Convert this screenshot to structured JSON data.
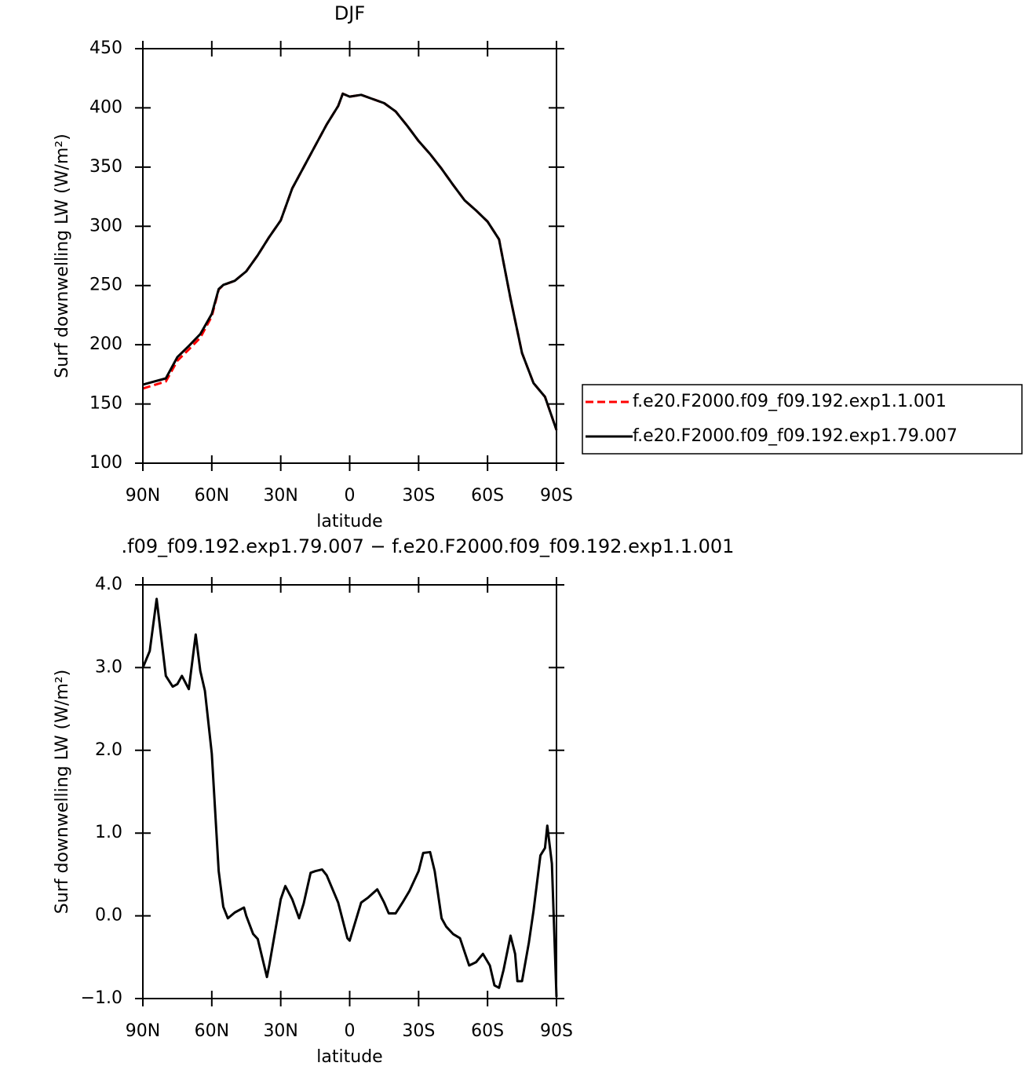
{
  "chart_data": [
    {
      "type": "line",
      "title": "DJF",
      "x_label": "latitude",
      "y_label": "Surf downwelling LW (W/m²)",
      "x": [
        90,
        85,
        80,
        75,
        70,
        65,
        60,
        57,
        55,
        50,
        45,
        40,
        35,
        30,
        25,
        20,
        15,
        10,
        5,
        3,
        0,
        -5,
        -10,
        -15,
        -20,
        -25,
        -30,
        -35,
        -40,
        -45,
        -50,
        -55,
        -60,
        -65,
        -70,
        -75,
        -80,
        -85,
        -90
      ],
      "xlim": [
        90,
        -90
      ],
      "xticks": [
        {
          "value": 90,
          "label": "90N"
        },
        {
          "value": 60,
          "label": "60N"
        },
        {
          "value": 30,
          "label": "30N"
        },
        0,
        {
          "value": -30,
          "label": "30S"
        },
        {
          "value": -60,
          "label": "60S"
        },
        {
          "value": -90,
          "label": "90S"
        }
      ],
      "ylim": [
        100,
        450
      ],
      "yticks": [
        100,
        150,
        200,
        250,
        300,
        350,
        400,
        450
      ],
      "legend": "outside-right",
      "series": [
        {
          "name": "f.e20.F2000.f09_f09.192.exp1.1.001",
          "color": "#ff0000",
          "dash": "dashed",
          "values": [
            163,
            166,
            169,
            186.5,
            196,
            206,
            224,
            246.5,
            250.4,
            254,
            262,
            275.6,
            291,
            305,
            332,
            350,
            368,
            386,
            401.6,
            412,
            409.5,
            411,
            407.5,
            404,
            397,
            385,
            372,
            361,
            348.6,
            335,
            322,
            313.4,
            304,
            289,
            239,
            193,
            167.6,
            156,
            128
          ]
        },
        {
          "name": "f.e20.F2000.f09_f09.192.exp1.79.007",
          "color": "#000000",
          "dash": "solid",
          "values": [
            166.3,
            169,
            171.6,
            189.5,
            199,
            209,
            226,
            247,
            250.5,
            254,
            262,
            275.6,
            291,
            305,
            332,
            350,
            368,
            386,
            401.6,
            412,
            409.5,
            411,
            407.5,
            404,
            397,
            385,
            372,
            361,
            348.6,
            335,
            322,
            313.4,
            304,
            289,
            239,
            193,
            167.6,
            156,
            128
          ]
        }
      ]
    },
    {
      "type": "line",
      "title": ".f09_f09.192.exp1.79.007 − f.e20.F2000.f09_f09.192.exp1.1.001",
      "x_label": "latitude",
      "y_label": "Surf downwelling LW (W/m²)",
      "x": [
        90,
        87,
        84,
        80,
        77,
        75,
        73,
        70,
        67,
        65,
        63,
        60,
        57,
        55,
        53,
        50,
        46,
        45,
        42,
        40,
        36,
        35,
        30,
        28,
        25,
        22,
        20,
        17,
        15,
        12,
        10,
        5,
        1,
        0,
        -5,
        -8,
        -12,
        -15,
        -17,
        -20,
        -23,
        -26,
        -30,
        -32,
        -35,
        -37,
        -40,
        -42,
        -45,
        -48,
        -52,
        -55,
        -58,
        -61,
        -63,
        -65,
        -67,
        -70,
        -72,
        -73,
        -75,
        -78,
        -80,
        -83,
        -85,
        -86,
        -88,
        -90
      ],
      "xlim": [
        90,
        -90
      ],
      "xticks": [
        {
          "value": 90,
          "label": "90N"
        },
        {
          "value": 60,
          "label": "60N"
        },
        {
          "value": 30,
          "label": "30N"
        },
        0,
        {
          "value": -30,
          "label": "30S"
        },
        {
          "value": -60,
          "label": "60S"
        },
        {
          "value": -90,
          "label": "90S"
        }
      ],
      "ylim": [
        -1,
        4
      ],
      "yticks": [
        {
          "value": -1,
          "label": "−1.0"
        },
        {
          "value": 0,
          "label": "0.0"
        },
        {
          "value": 1,
          "label": "1.0"
        },
        {
          "value": 2,
          "label": "2.0"
        },
        {
          "value": 3,
          "label": "3.0"
        },
        {
          "value": 4,
          "label": "4.0"
        }
      ],
      "color": "#000000",
      "values": [
        3.0,
        3.2,
        3.83,
        2.9,
        2.77,
        2.8,
        2.9,
        2.74,
        3.4,
        2.96,
        2.72,
        1.96,
        0.54,
        0.11,
        -0.03,
        0.04,
        0.1,
        0.0,
        -0.22,
        -0.28,
        -0.74,
        -0.6,
        0.2,
        0.36,
        0.2,
        -0.03,
        0.15,
        0.52,
        0.54,
        0.56,
        0.49,
        0.16,
        -0.27,
        -0.3,
        0.16,
        0.22,
        0.32,
        0.16,
        0.03,
        0.03,
        0.16,
        0.3,
        0.54,
        0.76,
        0.77,
        0.54,
        -0.03,
        -0.13,
        -0.22,
        -0.27,
        -0.6,
        -0.56,
        -0.46,
        -0.6,
        -0.84,
        -0.87,
        -0.65,
        -0.24,
        -0.46,
        -0.79,
        -0.79,
        -0.32,
        0.06,
        0.73,
        0.82,
        1.09,
        0.63,
        -0.98
      ]
    }
  ]
}
